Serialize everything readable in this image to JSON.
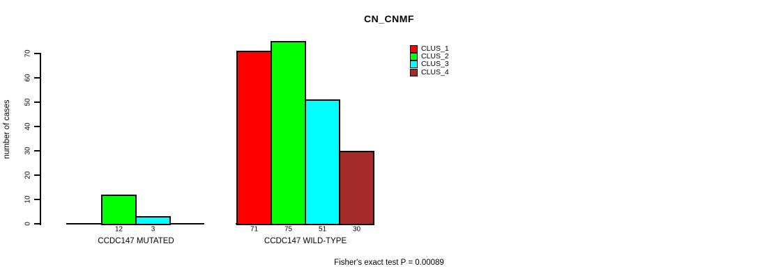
{
  "chart_data": {
    "type": "bar",
    "title": "CN_CNMF",
    "ylabel": "number of cases",
    "ylim": [
      0,
      70
    ],
    "yticks": [
      0,
      10,
      20,
      30,
      40,
      50,
      60,
      70
    ],
    "grid": false,
    "legend_position": "top-right",
    "axis_color": "#000000",
    "background_color": "#ffffff",
    "legend": [
      {
        "label": "CLUS_1",
        "color": "#ff0000"
      },
      {
        "label": "CLUS_2",
        "color": "#00ff00"
      },
      {
        "label": "CLUS_3",
        "color": "#00ffff"
      },
      {
        "label": "CLUS_4",
        "color": "#a52a2a"
      }
    ],
    "groups": [
      {
        "label": "CCDC147 MUTATED",
        "values": [
          null,
          12,
          3,
          null
        ],
        "bar_value_labels": [
          "12",
          "3"
        ]
      },
      {
        "label": "CCDC147 WILD-TYPE",
        "values": [
          71,
          75,
          51,
          30
        ],
        "bar_value_labels": [
          "71",
          "75",
          "51",
          "30"
        ]
      }
    ],
    "footnote": "Fisher's exact test P = 0.00089"
  }
}
